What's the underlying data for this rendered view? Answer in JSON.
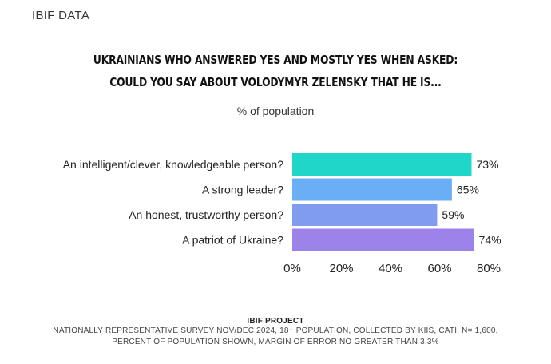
{
  "brand": "IBIF DATA",
  "title_line1": "UKRAINIANS WHO ANSWERED YES AND MOSTLY YES WHEN ASKED:",
  "title_line2": "COULD YOU SAY ABOUT VOLODYMYR ZELENSKY THAT HE IS...",
  "subtitle": "% of population",
  "chart_data": {
    "type": "bar",
    "orientation": "horizontal",
    "title": "UKRAINIANS WHO ANSWERED YES AND MOSTLY YES WHEN ASKED: COULD YOU SAY ABOUT VOLODYMYR ZELENSKY THAT HE IS...",
    "subtitle": "% of population",
    "categories": [
      "An intelligent/clever, knowledgeable person?",
      "A strong leader?",
      "An honest, trustworthy person?",
      "A patriot of Ukraine?"
    ],
    "values": [
      73,
      65,
      59,
      74
    ],
    "value_labels": [
      "73%",
      "65%",
      "59%",
      "74%"
    ],
    "bar_colors": [
      "#1fd6c9",
      "#6aaef5",
      "#7f9cf0",
      "#9b83ea"
    ],
    "xlim": [
      0,
      80
    ],
    "x_ticks": [
      0,
      20,
      40,
      60,
      80
    ],
    "x_tick_labels": [
      "0%",
      "20%",
      "40%",
      "60%",
      "80%"
    ],
    "grid": false
  },
  "footer": {
    "heading": "IBIF PROJECT",
    "line1": "NATIONALLY REPRESENTATIVE SURVEY NOV/DEC 2024, 18+ POPULATION, COLLECTED BY KIIS, CATI, N= 1,600,",
    "line2": "PERCENT OF POPULATION SHOWN, MARGIN OF ERROR NO GREATER THAN 3.3%"
  }
}
